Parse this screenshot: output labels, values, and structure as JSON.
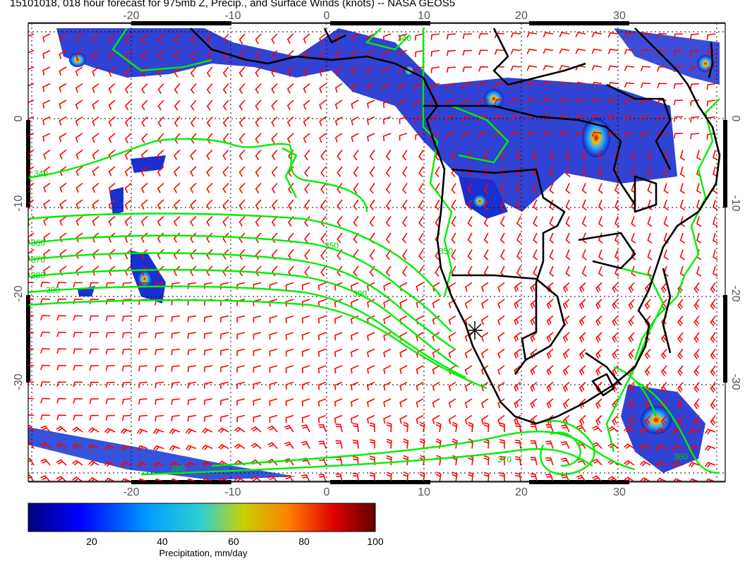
{
  "title": "15101018, 018 hour forecast for 975mb Z, Precip., and Surface Winds (knots) -- NASA GEOS5",
  "map": {
    "lon_ticks": [
      "-20",
      "-10",
      "0",
      "10",
      "20",
      "30"
    ],
    "lat_ticks": [
      "0",
      "-10",
      "-20",
      "-30"
    ],
    "lon_range": [
      -30,
      40
    ],
    "lat_range": [
      -40,
      12
    ],
    "contour_labels": [
      "340",
      "350",
      "360",
      "370",
      "380",
      "390",
      "390",
      "380",
      "370",
      "360",
      "350",
      "340"
    ],
    "colors": {
      "wind_barbs": "#ff0000",
      "contours": "#00ff00",
      "coastline": "#000000",
      "grid": "#000000"
    }
  },
  "colorbar": {
    "tick_labels": [
      "20",
      "40",
      "60",
      "80",
      "100"
    ],
    "range": [
      0,
      100
    ],
    "label": "Precipitation, mm/day",
    "stops": [
      "#00007f",
      "#0000ff",
      "#00a0ff",
      "#30d0d0",
      "#c8d000",
      "#ff8000",
      "#e00000",
      "#600000"
    ]
  }
}
